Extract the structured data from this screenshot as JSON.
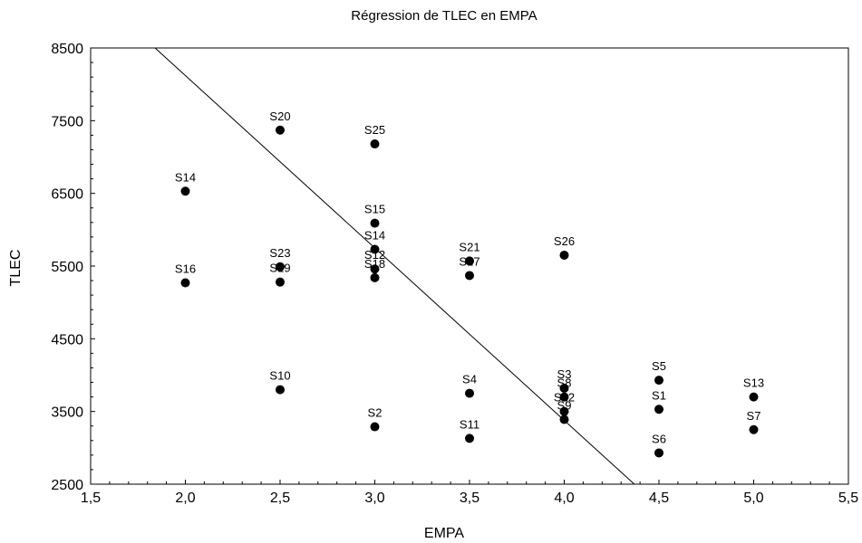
{
  "chart_data": {
    "type": "scatter",
    "title": "Régression de TLEC en EMPA",
    "xlabel": "EMPA",
    "ylabel": "TLEC",
    "xlim": [
      1.5,
      5.5
    ],
    "ylim": [
      2500,
      8500
    ],
    "x_ticks": [
      1.5,
      2.0,
      2.5,
      3.0,
      3.5,
      4.0,
      4.5,
      5.0,
      5.5
    ],
    "x_tick_labels": [
      "1,5",
      "2,0",
      "2,5",
      "3,0",
      "3,5",
      "4,0",
      "4,5",
      "5,0",
      "5,5"
    ],
    "y_ticks": [
      2500,
      3500,
      4500,
      5500,
      6500,
      7500,
      8500
    ],
    "y_tick_labels": [
      "2500",
      "3500",
      "4500",
      "5500",
      "6500",
      "7500",
      "8500"
    ],
    "grid": false,
    "points": [
      {
        "label": "S14",
        "x": 2.0,
        "y": 6530
      },
      {
        "label": "S16",
        "x": 2.0,
        "y": 5270
      },
      {
        "label": "S20",
        "x": 2.5,
        "y": 7370
      },
      {
        "label": "S23",
        "x": 2.5,
        "y": 5490
      },
      {
        "label": "S19",
        "x": 2.5,
        "y": 5280
      },
      {
        "label": "S10",
        "x": 2.5,
        "y": 3800
      },
      {
        "label": "S25",
        "x": 3.0,
        "y": 7180
      },
      {
        "label": "S15",
        "x": 3.0,
        "y": 6090
      },
      {
        "label": "S14",
        "x": 3.0,
        "y": 5730
      },
      {
        "label": "S12",
        "x": 3.0,
        "y": 5460
      },
      {
        "label": "S18",
        "x": 3.0,
        "y": 5340
      },
      {
        "label": "S2",
        "x": 3.0,
        "y": 3290
      },
      {
        "label": "S21",
        "x": 3.5,
        "y": 5570
      },
      {
        "label": "S17",
        "x": 3.5,
        "y": 5370
      },
      {
        "label": "S4",
        "x": 3.5,
        "y": 3750
      },
      {
        "label": "S11",
        "x": 3.5,
        "y": 3130
      },
      {
        "label": "S26",
        "x": 4.0,
        "y": 5650
      },
      {
        "label": "S3",
        "x": 4.0,
        "y": 3820
      },
      {
        "label": "S8",
        "x": 4.0,
        "y": 3700
      },
      {
        "label": "S22",
        "x": 4.0,
        "y": 3500
      },
      {
        "label": "S9",
        "x": 4.0,
        "y": 3390
      },
      {
        "label": "S5",
        "x": 4.5,
        "y": 3930
      },
      {
        "label": "S1",
        "x": 4.5,
        "y": 3530
      },
      {
        "label": "S6",
        "x": 4.5,
        "y": 2930
      },
      {
        "label": "S13",
        "x": 5.0,
        "y": 3700
      },
      {
        "label": "S7",
        "x": 5.0,
        "y": 3250
      }
    ],
    "regression_line": {
      "x": [
        1.84,
        4.37
      ],
      "y": [
        8500,
        2500
      ]
    }
  }
}
